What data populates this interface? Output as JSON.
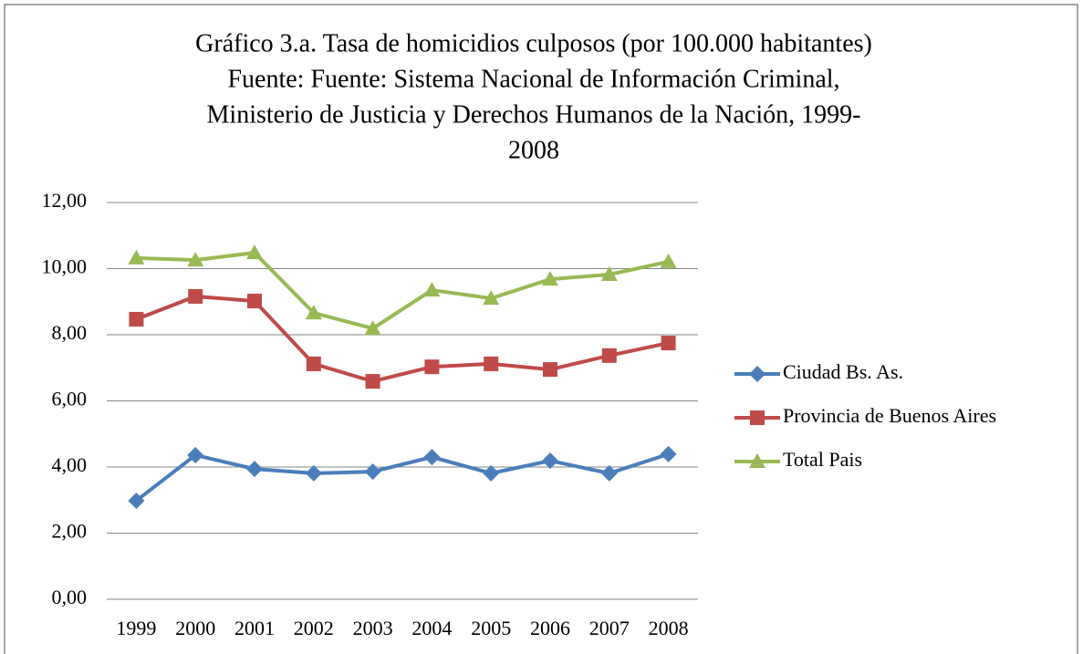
{
  "chart_data": {
    "type": "line",
    "title": [
      "Gráfico 3.a. Tasa de homicidios culposos (por 100.000 habitantes)",
      "Fuente: Fuente: Sistema Nacional de Información Criminal,",
      "Ministerio de Justicia y Derechos Humanos de la Nación, 1999-",
      "2008"
    ],
    "categories": [
      "1999",
      "2000",
      "2001",
      "2002",
      "2003",
      "2004",
      "2005",
      "2006",
      "2007",
      "2008"
    ],
    "series": [
      {
        "name": "Ciudad Bs. As.",
        "color": "#4a7ebb",
        "marker": "diamond",
        "values": [
          2.98,
          4.36,
          3.94,
          3.81,
          3.86,
          4.3,
          3.81,
          4.19,
          3.81,
          4.39
        ]
      },
      {
        "name": "Provincia de Buenos Aires",
        "color": "#be4b48",
        "marker": "square",
        "values": [
          8.47,
          9.16,
          9.02,
          7.12,
          6.59,
          7.03,
          7.12,
          6.95,
          7.37,
          7.75
        ]
      },
      {
        "name": "Total Pais",
        "color": "#98b954",
        "marker": "triangle",
        "values": [
          10.32,
          10.26,
          10.48,
          8.66,
          8.19,
          9.35,
          9.1,
          9.68,
          9.82,
          10.21
        ]
      }
    ],
    "ylim": [
      0,
      12
    ],
    "yticks": [
      {
        "value": 0,
        "label": "0,00"
      },
      {
        "value": 2,
        "label": "2,00"
      },
      {
        "value": 4,
        "label": "4,00"
      },
      {
        "value": 6,
        "label": "6,00"
      },
      {
        "value": 8,
        "label": "8,00"
      },
      {
        "value": 10,
        "label": "10,00"
      },
      {
        "value": 12,
        "label": "12,00"
      }
    ],
    "grid": true,
    "legend": "right"
  }
}
